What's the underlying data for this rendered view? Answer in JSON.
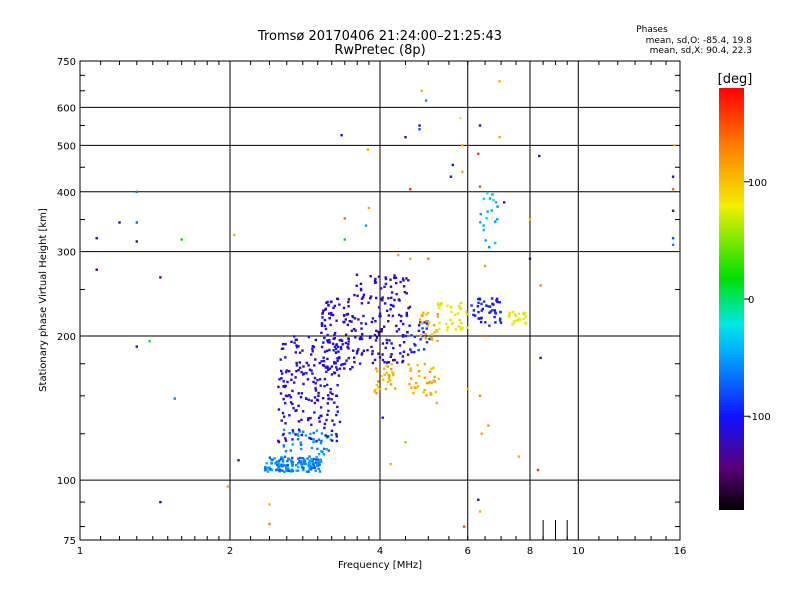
{
  "chart_data": {
    "type": "scatter",
    "title": "Tromsø 20170406 21:24:00–21:25:43",
    "subtitle": "RwPretec (8p)",
    "xlabel": "Frequency [MHz]",
    "ylabel": "Stationary phase Virtual Height [km]",
    "xscale": "log",
    "yscale": "log",
    "xlim": [
      1,
      16
    ],
    "ylim": [
      75,
      750
    ],
    "x_ticks": [
      1,
      2,
      4,
      6,
      8,
      10,
      16
    ],
    "x_tick_labels": [
      "1",
      "2",
      "4",
      "6",
      "8",
      "10",
      "16"
    ],
    "y_ticks": [
      75,
      100,
      200,
      300,
      400,
      500,
      600,
      750
    ],
    "y_tick_labels": [
      "75",
      "100",
      "200",
      "300",
      "400",
      "500",
      "600",
      "750"
    ],
    "x_gridlines": [
      2,
      4,
      6,
      8,
      10
    ],
    "y_gridlines": [
      100,
      200,
      300,
      400,
      500,
      600
    ],
    "grid": true,
    "phases_heading": "Phases",
    "phases_lines": [
      "mean, sd,O: -85.4, 19.8",
      "mean, sd,X:  90.4, 22.3"
    ],
    "colorbar": {
      "label": "[deg]",
      "ticks": [
        100,
        0,
        -100
      ],
      "tick_labels": [
        "100",
        "0",
        "-100"
      ],
      "range": [
        -180,
        180
      ]
    },
    "clusters": [
      {
        "fmin": 2.35,
        "fmax": 3.05,
        "hmin": 104,
        "hmax": 112,
        "pmin": -80,
        "pmax": -40,
        "n": 150
      },
      {
        "fmin": 2.55,
        "fmax": 3.2,
        "hmin": 113,
        "hmax": 128,
        "pmin": -70,
        "pmax": -40,
        "n": 40
      },
      {
        "fmin": 2.5,
        "fmax": 3.35,
        "hmin": 120,
        "hmax": 200,
        "pmin": -130,
        "pmax": -95,
        "n": 190
      },
      {
        "fmin": 3.05,
        "fmax": 3.55,
        "hmin": 170,
        "hmax": 240,
        "pmin": -130,
        "pmax": -95,
        "n": 100
      },
      {
        "fmin": 3.55,
        "fmax": 4.6,
        "hmin": 175,
        "hmax": 270,
        "pmin": -135,
        "pmax": -95,
        "n": 150
      },
      {
        "fmin": 3.9,
        "fmax": 4.3,
        "hmin": 150,
        "hmax": 175,
        "pmin": 95,
        "pmax": 125,
        "n": 30
      },
      {
        "fmin": 4.55,
        "fmax": 5.25,
        "hmin": 150,
        "hmax": 175,
        "pmin": 95,
        "pmax": 125,
        "n": 35
      },
      {
        "fmin": 4.6,
        "fmax": 5.1,
        "hmin": 185,
        "hmax": 215,
        "pmin": -110,
        "pmax": -80,
        "n": 25
      },
      {
        "fmin": 4.8,
        "fmax": 5.25,
        "hmin": 195,
        "hmax": 225,
        "pmin": 90,
        "pmax": 120,
        "n": 25
      },
      {
        "fmin": 5.2,
        "fmax": 6.0,
        "hmin": 205,
        "hmax": 235,
        "pmin": 70,
        "pmax": 90,
        "n": 35
      },
      {
        "fmin": 6.1,
        "fmax": 7.0,
        "hmin": 210,
        "hmax": 240,
        "pmin": -110,
        "pmax": -85,
        "n": 45
      },
      {
        "fmin": 7.2,
        "fmax": 7.9,
        "hmin": 210,
        "hmax": 225,
        "pmin": 75,
        "pmax": 95,
        "n": 25
      },
      {
        "fmin": 6.3,
        "fmax": 6.9,
        "hmin": 300,
        "hmax": 400,
        "pmin": -60,
        "pmax": -20,
        "n": 20
      }
    ],
    "points": [
      {
        "x": 1.08,
        "y": 275,
        "p": -150
      },
      {
        "x": 1.08,
        "y": 320,
        "p": -120
      },
      {
        "x": 1.2,
        "y": 345,
        "p": -120
      },
      {
        "x": 1.3,
        "y": 345,
        "p": -70
      },
      {
        "x": 1.3,
        "y": 315,
        "p": -120
      },
      {
        "x": 1.3,
        "y": 190,
        "p": -110
      },
      {
        "x": 1.45,
        "y": 265,
        "p": -140
      },
      {
        "x": 1.6,
        "y": 318,
        "p": 20
      },
      {
        "x": 1.55,
        "y": 148,
        "p": -60
      },
      {
        "x": 1.45,
        "y": 90,
        "p": -140
      },
      {
        "x": 1.38,
        "y": 195,
        "p": 10
      },
      {
        "x": 1.3,
        "y": 400,
        "p": -60
      },
      {
        "x": 1.98,
        "y": 97,
        "p": 110
      },
      {
        "x": 2.04,
        "y": 325,
        "p": 105
      },
      {
        "x": 2.08,
        "y": 110,
        "p": -110
      },
      {
        "x": 2.4,
        "y": 89,
        "p": 110
      },
      {
        "x": 2.4,
        "y": 81,
        "p": 130
      },
      {
        "x": 3.35,
        "y": 525,
        "p": -120
      },
      {
        "x": 3.4,
        "y": 352,
        "p": 140
      },
      {
        "x": 3.4,
        "y": 318,
        "p": 20
      },
      {
        "x": 3.75,
        "y": 340,
        "p": -50
      },
      {
        "x": 3.8,
        "y": 370,
        "p": 110
      },
      {
        "x": 3.78,
        "y": 490,
        "p": 110
      },
      {
        "x": 4.05,
        "y": 135,
        "p": -100
      },
      {
        "x": 4.2,
        "y": 108,
        "p": 110
      },
      {
        "x": 4.35,
        "y": 295,
        "p": 110
      },
      {
        "x": 4.5,
        "y": 520,
        "p": -140
      },
      {
        "x": 4.5,
        "y": 120,
        "p": 50
      },
      {
        "x": 4.6,
        "y": 290,
        "p": 110
      },
      {
        "x": 4.6,
        "y": 405,
        "p": 160
      },
      {
        "x": 4.8,
        "y": 540,
        "p": -80
      },
      {
        "x": 4.8,
        "y": 550,
        "p": -120
      },
      {
        "x": 4.85,
        "y": 650,
        "p": 110
      },
      {
        "x": 4.95,
        "y": 620,
        "p": -60
      },
      {
        "x": 5.0,
        "y": 290,
        "p": 130
      },
      {
        "x": 5.2,
        "y": 145,
        "p": 110
      },
      {
        "x": 5.55,
        "y": 430,
        "p": -110
      },
      {
        "x": 5.6,
        "y": 455,
        "p": -100
      },
      {
        "x": 5.8,
        "y": 570,
        "p": 80
      },
      {
        "x": 5.85,
        "y": 500,
        "p": 110
      },
      {
        "x": 5.85,
        "y": 440,
        "p": 110
      },
      {
        "x": 5.9,
        "y": 80,
        "p": 150
      },
      {
        "x": 6.0,
        "y": 155,
        "p": 110
      },
      {
        "x": 6.3,
        "y": 480,
        "p": 160
      },
      {
        "x": 6.35,
        "y": 550,
        "p": -120
      },
      {
        "x": 6.35,
        "y": 410,
        "p": 150
      },
      {
        "x": 6.35,
        "y": 150,
        "p": 130
      },
      {
        "x": 6.4,
        "y": 125,
        "p": 110
      },
      {
        "x": 6.3,
        "y": 91,
        "p": -120
      },
      {
        "x": 6.35,
        "y": 86,
        "p": 110
      },
      {
        "x": 6.5,
        "y": 280,
        "p": 120
      },
      {
        "x": 6.5,
        "y": 200,
        "p": 140
      },
      {
        "x": 6.6,
        "y": 130,
        "p": 120
      },
      {
        "x": 6.95,
        "y": 520,
        "p": 110
      },
      {
        "x": 6.95,
        "y": 680,
        "p": 110
      },
      {
        "x": 7.1,
        "y": 380,
        "p": -120
      },
      {
        "x": 7.6,
        "y": 112,
        "p": 110
      },
      {
        "x": 8.0,
        "y": 350,
        "p": 110
      },
      {
        "x": 8.0,
        "y": 290,
        "p": -150
      },
      {
        "x": 8.3,
        "y": 105,
        "p": 160
      },
      {
        "x": 8.35,
        "y": 475,
        "p": -120
      },
      {
        "x": 8.4,
        "y": 180,
        "p": -110
      },
      {
        "x": 8.4,
        "y": 255,
        "p": 130
      },
      {
        "x": 15.5,
        "y": 430,
        "p": -110
      },
      {
        "x": 15.5,
        "y": 405,
        "p": 140
      },
      {
        "x": 15.5,
        "y": 365,
        "p": -120
      },
      {
        "x": 15.5,
        "y": 320,
        "p": -80
      },
      {
        "x": 15.5,
        "y": 310,
        "p": -60
      },
      {
        "x": 15.6,
        "y": 500,
        "p": 110
      }
    ]
  }
}
